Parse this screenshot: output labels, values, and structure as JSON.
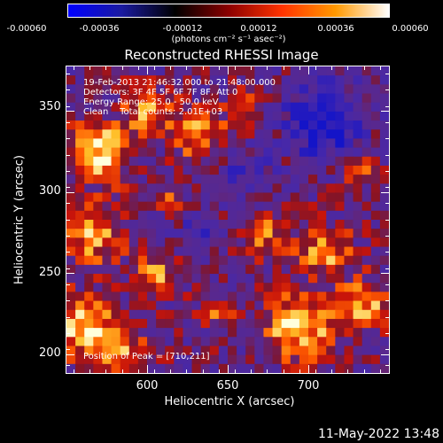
{
  "colorbar": {
    "tick_labels": [
      "-0.00060",
      "-0.00036",
      "-0.00012",
      "0.00012",
      "0.00036",
      "0.00060"
    ],
    "unit": "(photons cm⁻² s⁻¹ asec⁻²)",
    "colors": [
      "#0000ff",
      "#1a1aa0",
      "#000000",
      "#8b0000",
      "#ff3300",
      "#ff9900",
      "#ffffff"
    ]
  },
  "title": "Reconstructed RHESSI Image",
  "info": {
    "line1": "19-Feb-2013 21:46:32.000 to 21:48:00.000",
    "line2": "Detectors: 3F 4F 5F 6F 7F 8F, Att 0",
    "line3": "Energy Range: 25.0 - 50.0 keV",
    "line4": "Clean    Total counts: 2.01E+03",
    "peak": "Position of Peak = [710,211]"
  },
  "axes": {
    "xlabel": "Heliocentric X (arcsec)",
    "ylabel": "Heliocentric Y (arcsec)",
    "xticks": [
      "600",
      "650",
      "700"
    ],
    "yticks": [
      "350",
      "300",
      "250",
      "200"
    ]
  },
  "footer": "11-May-2022 13:48",
  "chart_data": {
    "type": "heatmap",
    "xlim": [
      551,
      740
    ],
    "ylim": [
      186,
      376
    ],
    "clim": [
      -0.0006,
      0.0006
    ],
    "peak_position": [
      710,
      211
    ]
  }
}
